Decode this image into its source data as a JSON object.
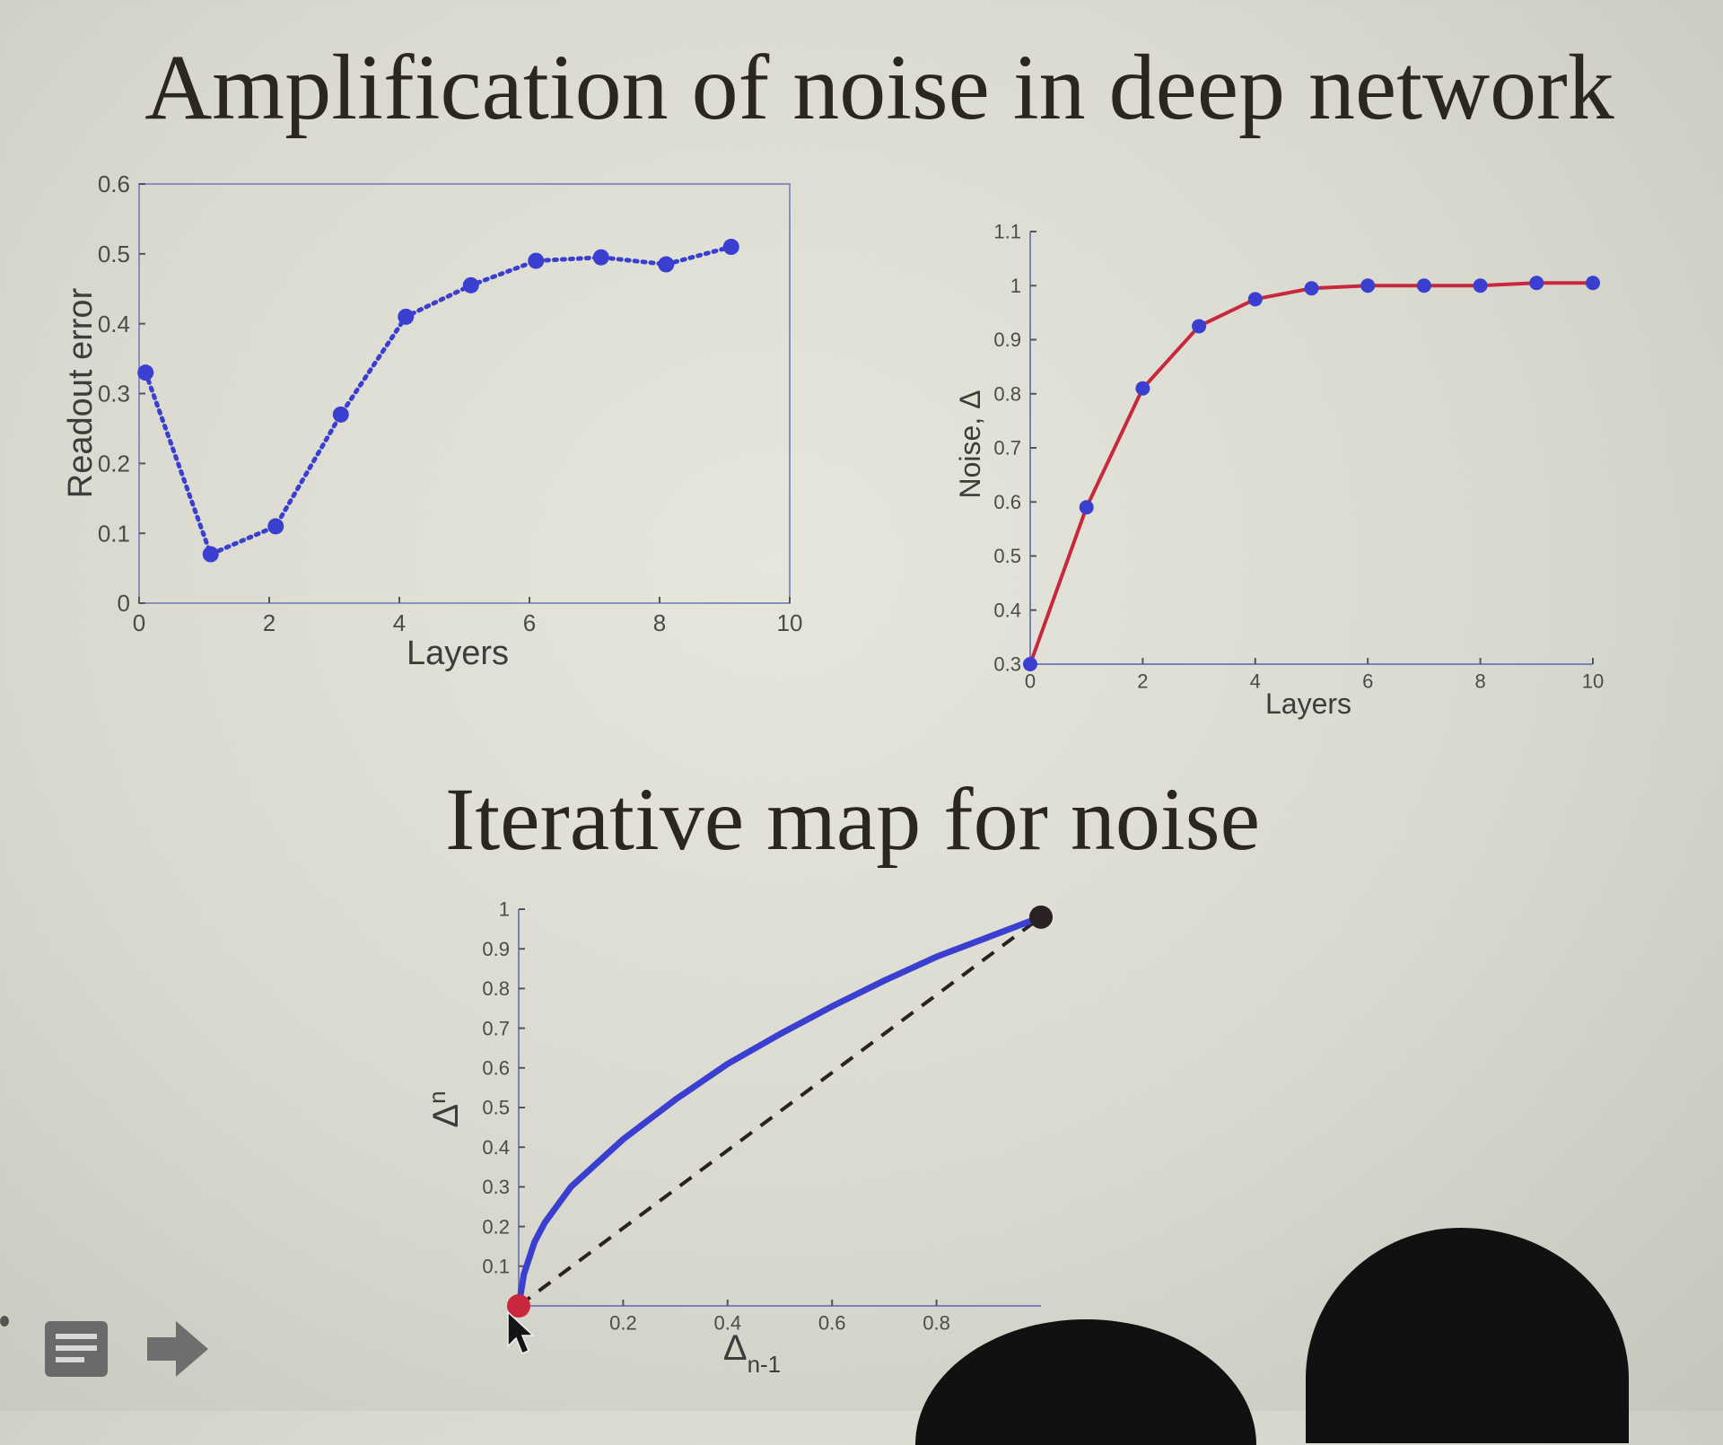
{
  "slide": {
    "title": "Amplification of noise in deep network",
    "subtitle": "Iterative map for noise"
  },
  "colors": {
    "blue": "#3a3fd0",
    "red": "#c8283c",
    "black": "#2a2222",
    "frame": "#8a8fbf"
  },
  "icons": [
    "notes-icon",
    "arrow-right-icon"
  ],
  "chart_data": [
    {
      "id": "readout",
      "type": "line",
      "title": "",
      "xlabel": "Layers",
      "ylabel": "Readout error",
      "xlim": [
        0,
        10
      ],
      "ylim": [
        0,
        0.6
      ],
      "xticks": [
        "0",
        "2",
        "4",
        "6",
        "8",
        "10"
      ],
      "yticks": [
        "0",
        "0.1",
        "0.2",
        "0.3",
        "0.4",
        "0.5",
        "0.6"
      ],
      "grid": false,
      "line_style": "dotted",
      "series": [
        {
          "color": "#3a3fd0",
          "x": [
            0,
            1,
            2,
            3,
            4,
            5,
            6,
            7,
            8,
            9
          ],
          "y": [
            0.33,
            0.07,
            0.11,
            0.27,
            0.41,
            0.455,
            0.49,
            0.495,
            0.485,
            0.51
          ]
        }
      ]
    },
    {
      "id": "noise",
      "type": "line",
      "title": "",
      "xlabel": "Layers",
      "ylabel": "Noise, Δ",
      "xlim": [
        0,
        10
      ],
      "ylim": [
        0.3,
        1.1
      ],
      "xticks": [
        "0",
        "2",
        "4",
        "6",
        "8",
        "10"
      ],
      "yticks": [
        "0.3",
        "0.4",
        "0.5",
        "0.6",
        "0.7",
        "0.8",
        "0.9",
        "1",
        "1.1"
      ],
      "grid": false,
      "series": [
        {
          "line_color": "#c8283c",
          "marker_color": "#3a3fd0",
          "x": [
            0,
            1,
            2,
            3,
            4,
            5,
            6,
            7,
            8,
            9,
            10
          ],
          "y": [
            0.3,
            0.59,
            0.81,
            0.925,
            0.975,
            0.995,
            1.0,
            1.0,
            1.0,
            1.005,
            1.005
          ]
        }
      ]
    },
    {
      "id": "iterative-map",
      "type": "line",
      "title": "",
      "xlabel": "Δ",
      "xlabel_sub": "n-1",
      "ylabel": "Δ",
      "ylabel_sup": "n",
      "xlim": [
        0,
        1
      ],
      "ylim": [
        0,
        1
      ],
      "xticks": [
        "0.2",
        "0.4",
        "0.6",
        "0.8"
      ],
      "yticks": [
        "0.1",
        "0.2",
        "0.3",
        "0.4",
        "0.5",
        "0.6",
        "0.7",
        "0.8",
        "0.9",
        "1"
      ],
      "grid": false,
      "series": [
        {
          "style": "solid",
          "color": "#3a3fd0",
          "x": [
            0,
            0.01,
            0.03,
            0.05,
            0.1,
            0.15,
            0.2,
            0.3,
            0.4,
            0.5,
            0.6,
            0.7,
            0.8,
            0.9,
            1.0
          ],
          "y": [
            0,
            0.08,
            0.16,
            0.21,
            0.3,
            0.36,
            0.42,
            0.52,
            0.61,
            0.685,
            0.755,
            0.82,
            0.88,
            0.93,
            0.98
          ]
        },
        {
          "style": "dashed",
          "color": "#2a2222",
          "x": [
            0,
            1.0
          ],
          "y": [
            0,
            0.98
          ]
        }
      ],
      "points": [
        {
          "x": 0,
          "y": 0,
          "color": "#c8283c"
        },
        {
          "x": 1.0,
          "y": 0.98,
          "color": "#2a2222"
        }
      ]
    }
  ]
}
